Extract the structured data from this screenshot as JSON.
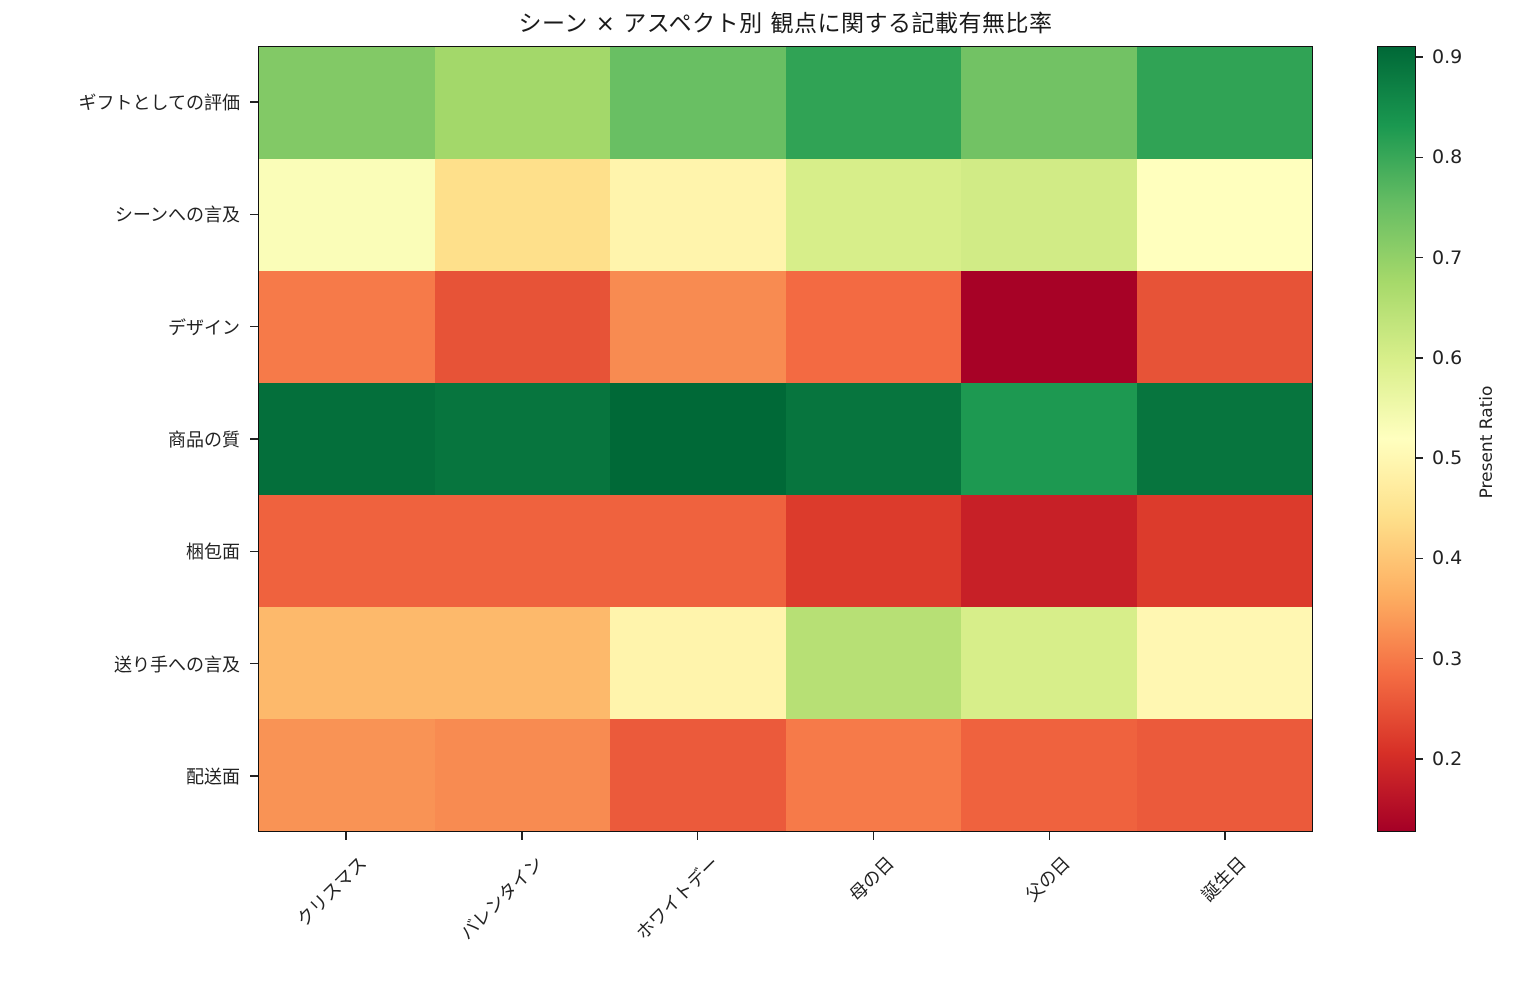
{
  "title": "シーン × アスペクト別 観点に関する記載有無比率",
  "colorbar": {
    "label": "Present Ratio",
    "ticks": [
      "0.2",
      "0.3",
      "0.4",
      "0.5",
      "0.6",
      "0.7",
      "0.8",
      "0.9"
    ]
  },
  "chart_data": {
    "type": "heatmap",
    "title": "シーン × アスペクト別 観点に関する記載有無比率",
    "xlabel": "",
    "ylabel": "",
    "colormap": "RdYlGn",
    "colorbar_label": "Present Ratio",
    "vmin": 0.127,
    "vmax": 0.911,
    "x": [
      "クリスマス",
      "バレンタイン",
      "ホワイトデー",
      "母の日",
      "父の日",
      "誕生日"
    ],
    "y": [
      "ギフトとしての評価",
      "シーンへの言及",
      "デザイン",
      "商品の質",
      "梱包面",
      "送り手への言及",
      "配送面"
    ],
    "values": [
      [
        0.72,
        0.68,
        0.75,
        0.81,
        0.74,
        0.81
      ],
      [
        0.53,
        0.44,
        0.49,
        0.6,
        0.61,
        0.52
      ],
      [
        0.3,
        0.25,
        0.32,
        0.28,
        0.13,
        0.25
      ],
      [
        0.9,
        0.89,
        0.91,
        0.89,
        0.83,
        0.89
      ],
      [
        0.27,
        0.27,
        0.27,
        0.22,
        0.18,
        0.22
      ],
      [
        0.38,
        0.38,
        0.49,
        0.65,
        0.6,
        0.5
      ],
      [
        0.33,
        0.32,
        0.26,
        0.3,
        0.27,
        0.26
      ]
    ],
    "colorbar_ticks": [
      0.2,
      0.3,
      0.4,
      0.5,
      0.6,
      0.7,
      0.8,
      0.9
    ],
    "grid": false,
    "legend": "colorbar-right"
  }
}
